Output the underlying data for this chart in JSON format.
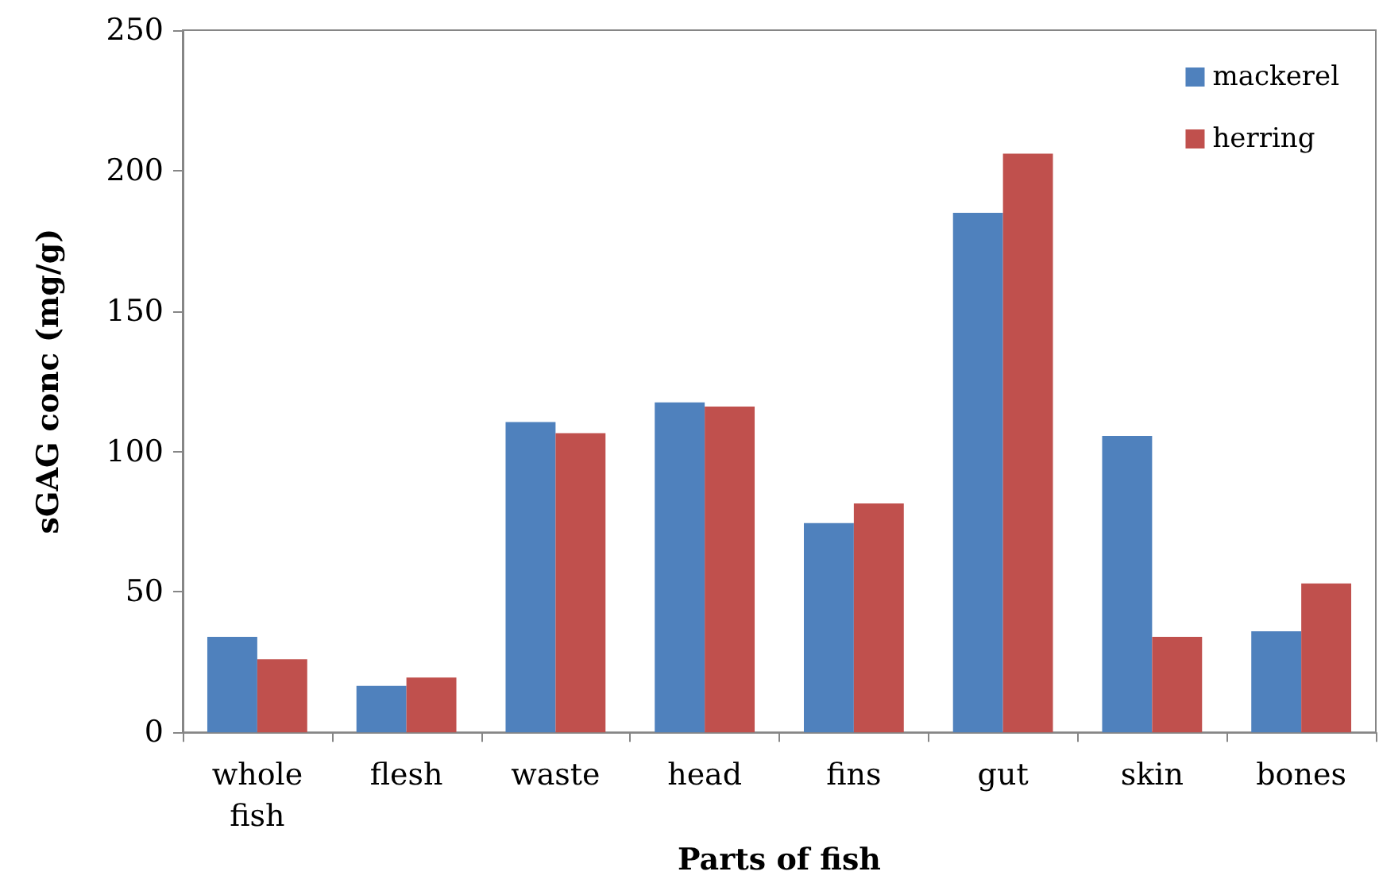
{
  "chart_data": {
    "type": "bar",
    "xlabel": "Parts of fish",
    "ylabel": "sGAG conc (mg/g)",
    "categories": [
      "whole\nfish",
      "flesh",
      "waste",
      "head",
      "fins",
      "gut",
      "skin",
      "bones"
    ],
    "series": [
      {
        "name": "mackerel",
        "color": "#4f81bd",
        "values": [
          34,
          16.5,
          110.5,
          117.5,
          74.5,
          185,
          105.5,
          36
        ]
      },
      {
        "name": "herring",
        "color": "#c0504d",
        "values": [
          26,
          19.5,
          106.5,
          116,
          81.5,
          206,
          34,
          53
        ]
      }
    ],
    "ylim": [
      0,
      250
    ],
    "yticks": [
      0,
      50,
      100,
      150,
      200,
      250
    ],
    "grid": false,
    "legend": "top right"
  }
}
